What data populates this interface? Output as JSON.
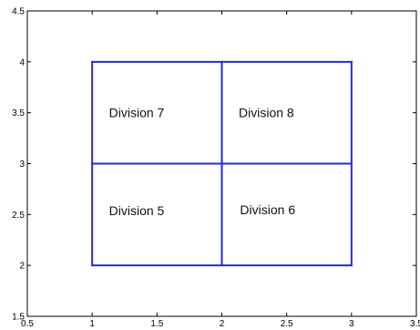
{
  "chart_data": {
    "type": "line",
    "title": "",
    "xlabel": "",
    "ylabel": "",
    "xlim": [
      0.5,
      3.5
    ],
    "ylim": [
      1.5,
      4.5
    ],
    "x_ticks": [
      0.5,
      1,
      1.5,
      2,
      2.5,
      3,
      3.5
    ],
    "y_ticks": [
      1.5,
      2,
      2.5,
      3,
      3.5,
      4,
      4.5
    ],
    "x_tick_labels": [
      "0.5",
      "1",
      "1.5",
      "2",
      "2.5",
      "3",
      "3.5"
    ],
    "y_tick_labels": [
      "1.5",
      "2",
      "2.5",
      "3",
      "3.5",
      "4",
      "4.5"
    ],
    "grid": false,
    "line_color": "#2a2acc",
    "lines": [
      {
        "x": [
          1,
          3
        ],
        "y": [
          2,
          2
        ]
      },
      {
        "x": [
          1,
          3
        ],
        "y": [
          3,
          3
        ]
      },
      {
        "x": [
          1,
          3
        ],
        "y": [
          4,
          4
        ]
      },
      {
        "x": [
          1,
          1
        ],
        "y": [
          2,
          4
        ]
      },
      {
        "x": [
          2,
          2
        ],
        "y": [
          2,
          4
        ]
      },
      {
        "x": [
          3,
          3
        ],
        "y": [
          2,
          4
        ]
      }
    ],
    "annotations": [
      {
        "text": "Division 7",
        "x": 1.13,
        "y": 3.5
      },
      {
        "text": "Division 8",
        "x": 2.13,
        "y": 3.5
      },
      {
        "text": "Division 5",
        "x": 1.13,
        "y": 2.54
      },
      {
        "text": "Division 6",
        "x": 2.14,
        "y": 2.55
      }
    ]
  }
}
